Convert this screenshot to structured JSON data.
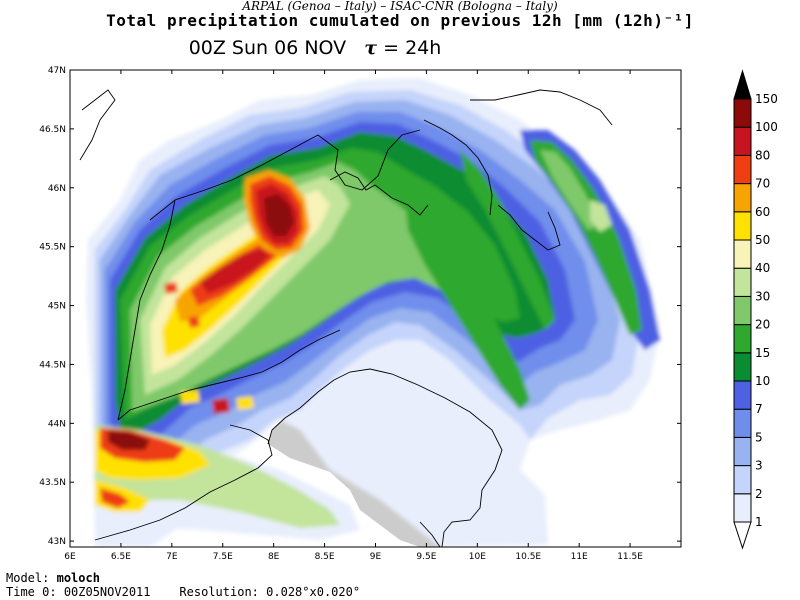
{
  "header": {
    "institutes": "ARPAL (Genoa – Italy)   –   ISAC-CNR (Bologna – Italy)",
    "title": "Total precipitation cumulated on previous 12h [mm (12h)⁻¹]",
    "valid_time": "00Z Sun 06 NOV",
    "tau_symbol": "τ",
    "tau_value": "= 24h"
  },
  "map": {
    "lon_ticks": [
      "6E",
      "6.5E",
      "7E",
      "7.5E",
      "8E",
      "8.5E",
      "9E",
      "9.5E",
      "10E",
      "10.5E",
      "11E",
      "11.5E"
    ],
    "lat_ticks": [
      "47N",
      "46.5N",
      "46N",
      "45.5N",
      "45N",
      "44.5N",
      "44N",
      "43.5N",
      "43N"
    ],
    "lon_range": [
      6.0,
      12.0
    ],
    "lat_range": [
      42.95,
      47.0
    ],
    "land_color": "#cccccc",
    "sea_color": "#ffffff"
  },
  "colorbar": {
    "levels": [
      "1",
      "2",
      "3",
      "5",
      "7",
      "10",
      "15",
      "20",
      "30",
      "40",
      "50",
      "60",
      "70",
      "80",
      "100",
      "150"
    ],
    "colors": [
      "#e8eefc",
      "#c4d4fa",
      "#99b2f0",
      "#6f8eeb",
      "#4e61e3",
      "#0a8c32",
      "#2ea82e",
      "#7fc96a",
      "#c2e49b",
      "#f8f3b8",
      "#ffe100",
      "#f8a400",
      "#ee3e12",
      "#c8141e",
      "#8c0a0a",
      "#000000"
    ]
  },
  "footer": {
    "model_label": "Model:",
    "model_value": "moloch",
    "time0_label": "Time 0:",
    "time0_value": "00Z05NOV2011",
    "resolution_label": "Resolution:",
    "resolution_value": "0.028°x0.020°"
  }
}
